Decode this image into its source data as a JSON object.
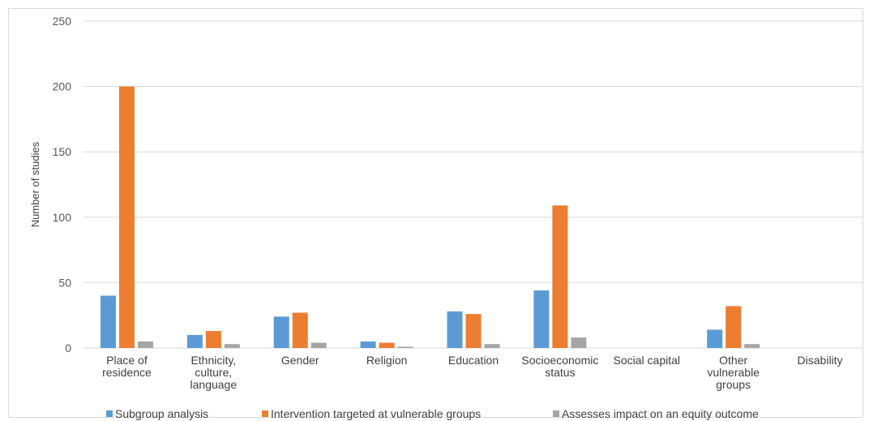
{
  "chart_data": {
    "type": "bar",
    "title": "",
    "xlabel": "",
    "ylabel": "Number of studies",
    "ylim": [
      0,
      250
    ],
    "yticks": [
      0,
      50,
      100,
      150,
      200,
      250
    ],
    "grid": true,
    "legend_position": "bottom",
    "categories": [
      [
        "Place of",
        "residence"
      ],
      [
        "Ethnicity,",
        "culture,",
        "language"
      ],
      [
        "Gender"
      ],
      [
        "Religion"
      ],
      [
        "Education"
      ],
      [
        "Socioeconomic",
        "status"
      ],
      [
        "Social capital"
      ],
      [
        "Other",
        "vulnerable",
        "groups"
      ],
      [
        "Disability"
      ]
    ],
    "series": [
      {
        "name": "Subgroup analysis",
        "color": "#5b9bd5",
        "values": [
          40,
          10,
          24,
          5,
          28,
          44,
          0,
          14,
          0
        ]
      },
      {
        "name": "Intervention targeted at vulnerable groups",
        "color": "#ed7d31",
        "values": [
          200,
          13,
          27,
          4,
          26,
          109,
          0,
          32,
          0
        ]
      },
      {
        "name": "Assesses impact on an equity outcome",
        "color": "#a5a5a5",
        "values": [
          5,
          3,
          4,
          1,
          3,
          8,
          0,
          3,
          0
        ]
      }
    ]
  }
}
